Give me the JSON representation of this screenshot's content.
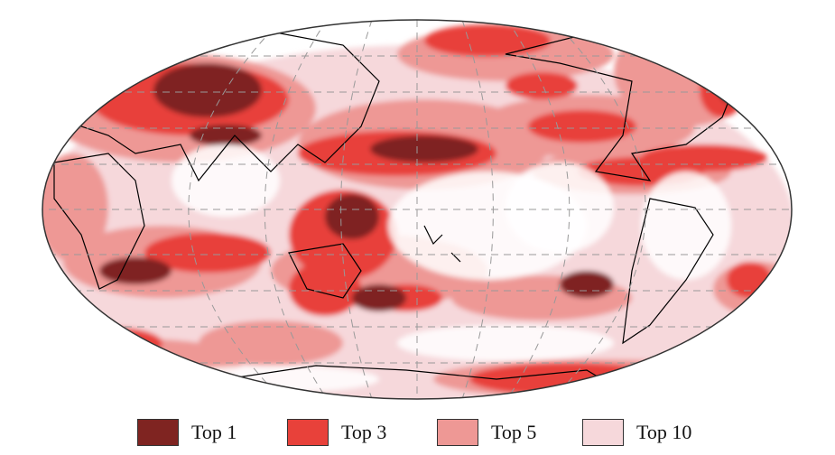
{
  "legend": [
    {
      "label": "Top 1",
      "color": "#7f2421"
    },
    {
      "label": "Top 3",
      "color": "#e8413a"
    },
    {
      "label": "Top 5",
      "color": "#ee9895"
    },
    {
      "label": "Top 10",
      "color": "#f6d8db"
    }
  ],
  "map": {
    "projection": "Robinson, Pacific-centered",
    "graticule": "dashed gray",
    "coastlines": "black",
    "ocean_color": "#ffffff"
  }
}
